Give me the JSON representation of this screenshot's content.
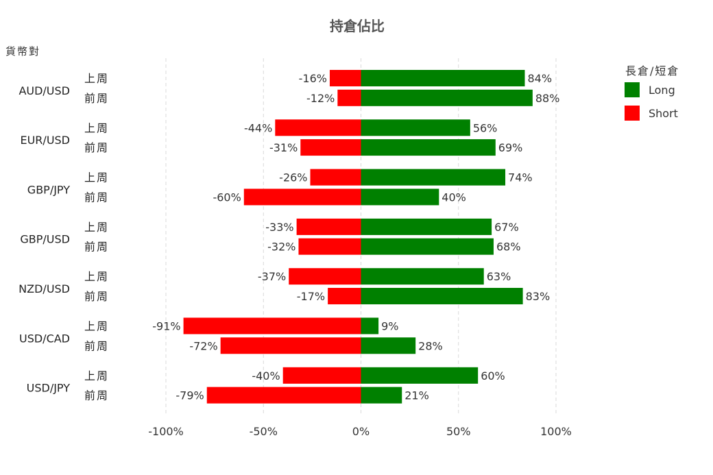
{
  "chart_data": {
    "type": "bar",
    "orientation": "horizontal-diverging",
    "title": "持倉佔比",
    "ylabel": "貨幣對",
    "xlim": [
      -100,
      100
    ],
    "x_ticks": [
      -100,
      -50,
      0,
      50,
      100
    ],
    "x_tick_labels": [
      "-100%",
      "-50%",
      "0%",
      "50%",
      "100%"
    ],
    "grid": "vertical-dashed",
    "legend_position": "top-right",
    "legend_title": "長倉/短倉",
    "colors": {
      "Long": "#008000",
      "Short": "#ff0000"
    },
    "series": [
      {
        "name": "Long"
      },
      {
        "name": "Short"
      }
    ],
    "groups": [
      {
        "pair": "AUD/USD",
        "rows": [
          {
            "week": "上周",
            "short": -16,
            "long": 84,
            "short_label": "-16%",
            "long_label": "84%"
          },
          {
            "week": "前周",
            "short": -12,
            "long": 88,
            "short_label": "-12%",
            "long_label": "88%"
          }
        ]
      },
      {
        "pair": "EUR/USD",
        "rows": [
          {
            "week": "上周",
            "short": -44,
            "long": 56,
            "short_label": "-44%",
            "long_label": "56%"
          },
          {
            "week": "前周",
            "short": -31,
            "long": 69,
            "short_label": "-31%",
            "long_label": "69%"
          }
        ]
      },
      {
        "pair": "GBP/JPY",
        "rows": [
          {
            "week": "上周",
            "short": -26,
            "long": 74,
            "short_label": "-26%",
            "long_label": "74%"
          },
          {
            "week": "前周",
            "short": -60,
            "long": 40,
            "short_label": "-60%",
            "long_label": "40%"
          }
        ]
      },
      {
        "pair": "GBP/USD",
        "rows": [
          {
            "week": "上周",
            "short": -33,
            "long": 67,
            "short_label": "-33%",
            "long_label": "67%"
          },
          {
            "week": "前周",
            "short": -32,
            "long": 68,
            "short_label": "-32%",
            "long_label": "68%"
          }
        ]
      },
      {
        "pair": "NZD/USD",
        "rows": [
          {
            "week": "上周",
            "short": -37,
            "long": 63,
            "short_label": "-37%",
            "long_label": "63%"
          },
          {
            "week": "前周",
            "short": -17,
            "long": 83,
            "short_label": "-17%",
            "long_label": "83%"
          }
        ]
      },
      {
        "pair": "USD/CAD",
        "rows": [
          {
            "week": "上周",
            "short": -91,
            "long": 9,
            "short_label": "-91%",
            "long_label": "9%"
          },
          {
            "week": "前周",
            "short": -72,
            "long": 28,
            "short_label": "-72%",
            "long_label": "28%"
          }
        ]
      },
      {
        "pair": "USD/JPY",
        "rows": [
          {
            "week": "上周",
            "short": -40,
            "long": 60,
            "short_label": "-40%",
            "long_label": "60%"
          },
          {
            "week": "前周",
            "short": -79,
            "long": 21,
            "short_label": "-79%",
            "long_label": "21%"
          }
        ]
      }
    ]
  }
}
